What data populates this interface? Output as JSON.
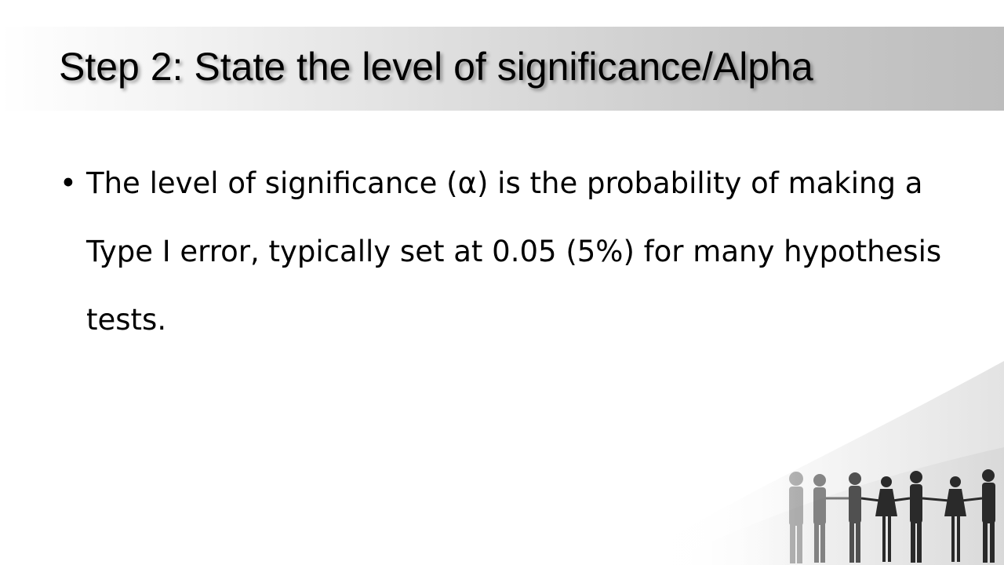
{
  "slide": {
    "title": "Step 2: State the level of significance/Alpha",
    "bullets": [
      {
        "text": "The level of significance (α) is the probability of making a Type I error, typically set at 0.05 (5%) for many hypothesis tests."
      }
    ]
  },
  "decor": {
    "image": "people-holding-hands-silhouette",
    "swoosh_color": "#e6e6e6"
  }
}
